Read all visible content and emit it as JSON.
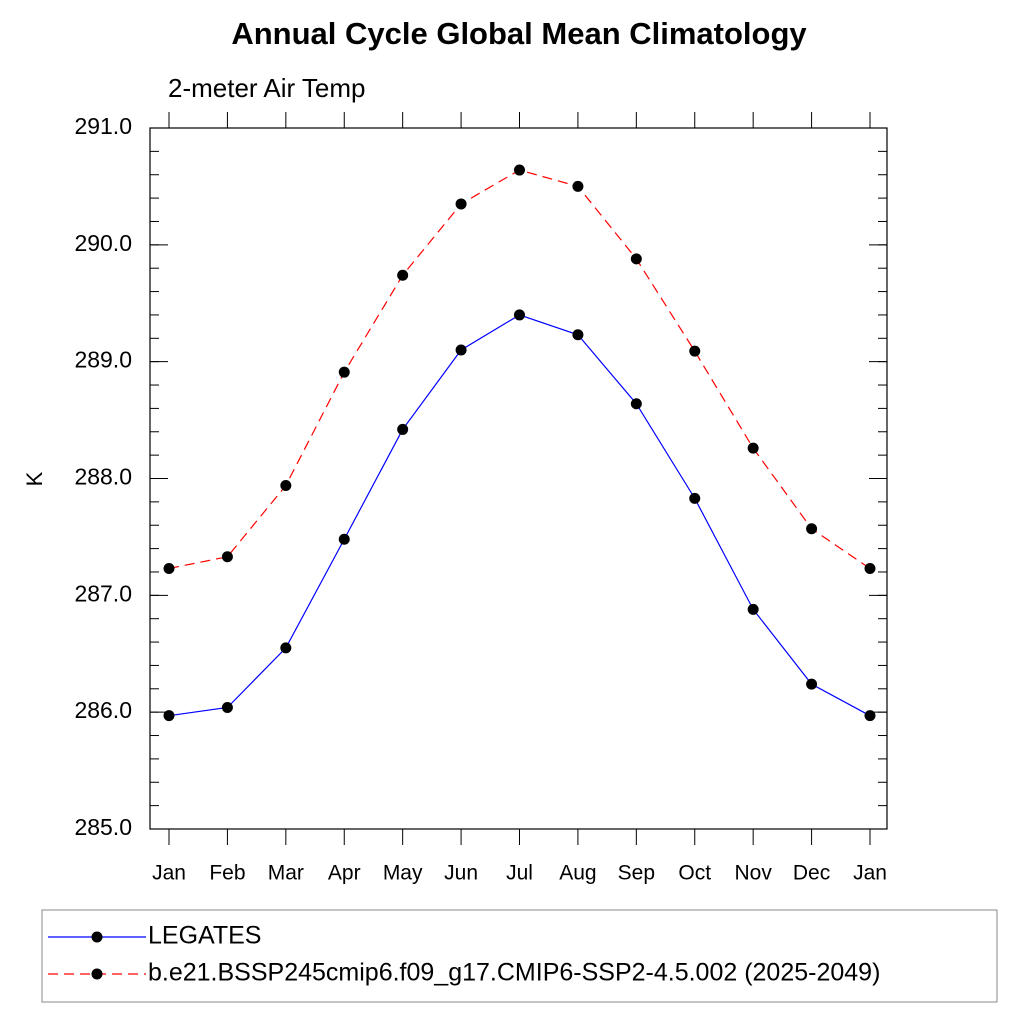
{
  "chart_data": {
    "type": "line",
    "title": "Annual Cycle Global Mean Climatology",
    "subtitle": "2-meter Air Temp",
    "y_label": "K",
    "categories": [
      "Jan",
      "Feb",
      "Mar",
      "Apr",
      "May",
      "Jun",
      "Jul",
      "Aug",
      "Sep",
      "Oct",
      "Nov",
      "Dec",
      "Jan"
    ],
    "series": [
      {
        "name": "LEGATES",
        "color": "#0000ff",
        "dash": false,
        "values": [
          285.97,
          286.04,
          286.55,
          287.48,
          288.42,
          289.1,
          289.4,
          289.23,
          288.64,
          287.83,
          286.88,
          286.24,
          285.97
        ]
      },
      {
        "name": "b.e21.BSSP245cmip6.f09_g17.CMIP6-SSP2-4.5.002 (2025-2049)",
        "color": "#ff0000",
        "dash": true,
        "values": [
          287.23,
          287.33,
          287.94,
          288.91,
          289.74,
          290.35,
          290.64,
          290.5,
          289.88,
          289.09,
          288.26,
          287.57,
          287.23
        ]
      }
    ],
    "ylim": [
      285,
      291
    ],
    "yticks": [
      {
        "value": 285,
        "label": "285.0"
      },
      {
        "value": 286,
        "label": "286.0"
      },
      {
        "value": 287,
        "label": "287.0"
      },
      {
        "value": 288,
        "label": "288.0"
      },
      {
        "value": 289,
        "label": "289.0"
      },
      {
        "value": 290,
        "label": "290.0"
      },
      {
        "value": 291,
        "label": "291.0"
      }
    ],
    "grid": false,
    "legend": "bottom"
  }
}
